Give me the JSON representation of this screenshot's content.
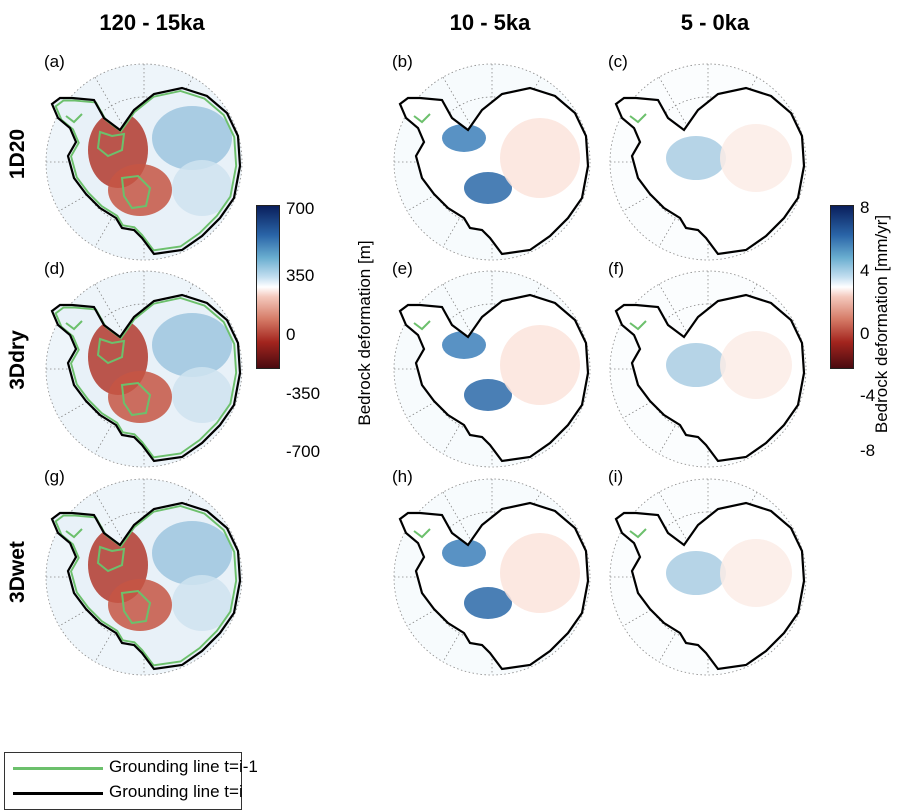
{
  "column_titles": [
    "120 - 15ka",
    "10 - 5ka",
    "5 - 0ka"
  ],
  "row_labels": [
    "1D20",
    "3Ddry",
    "3Dwet"
  ],
  "panels": [
    {
      "label": "(a)",
      "column": 0,
      "row": 0
    },
    {
      "label": "(b)",
      "column": 1,
      "row": 0
    },
    {
      "label": "(c)",
      "column": 2,
      "row": 0
    },
    {
      "label": "(d)",
      "column": 0,
      "row": 1
    },
    {
      "label": "(e)",
      "column": 1,
      "row": 1
    },
    {
      "label": "(f)",
      "column": 2,
      "row": 1
    },
    {
      "label": "(g)",
      "column": 0,
      "row": 2
    },
    {
      "label": "(h)",
      "column": 1,
      "row": 2
    },
    {
      "label": "(i)",
      "column": 2,
      "row": 2
    }
  ],
  "colorbar_left": {
    "title": "Bedrock deformation [m]",
    "ticks": [
      "700",
      "350",
      "0",
      "-350",
      "-700"
    ],
    "min": -700,
    "max": 700
  },
  "colorbar_right": {
    "title": "Bedrock deformation [mm/yr]",
    "ticks": [
      "8",
      "4",
      "0",
      "-4",
      "-8"
    ],
    "min": -8,
    "max": 8
  },
  "legend": {
    "items": [
      {
        "label": "Grounding line t=i-1",
        "color": "#6cc06c"
      },
      {
        "label": "Grounding line t=i",
        "color": "#000000"
      }
    ]
  },
  "colors": {
    "positive": "#0a2a6b",
    "negative": "#5a0d12",
    "neutral": "#ffffff",
    "grounding_prev": "#6cc06c",
    "grounding_curr": "#000000"
  }
}
